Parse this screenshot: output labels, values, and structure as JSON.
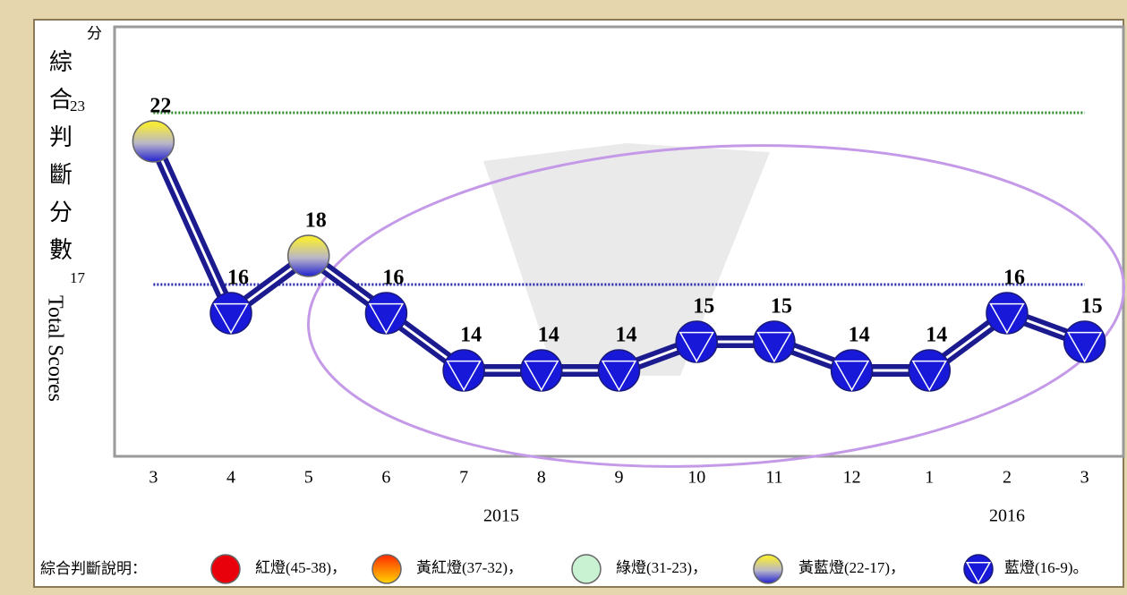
{
  "chart_data": {
    "type": "line",
    "y_unit": "分",
    "y_label_zh": "綜合判斷分數",
    "y_label_en": "Total Scores",
    "categories": [
      "3",
      "4",
      "5",
      "6",
      "7",
      "8",
      "9",
      "10",
      "11",
      "12",
      "1",
      "2",
      "3"
    ],
    "year_labels": [
      "2015",
      "2016"
    ],
    "values": [
      22,
      16,
      18,
      16,
      14,
      14,
      14,
      15,
      15,
      14,
      14,
      16,
      15
    ],
    "line_color": "#1b1b8f",
    "ylim": [
      11,
      26
    ],
    "yticks": [
      17,
      23
    ],
    "grid_colors": [
      "#2a2ab0",
      "#2e8b2e"
    ],
    "legend_title": "綜合判斷說明：",
    "legend": [
      {
        "label": "紅燈(45-38)，",
        "range": [
          38,
          45
        ],
        "color": "#e8000b"
      },
      {
        "label": "黃紅燈(37-32)，",
        "range": [
          32,
          37
        ],
        "color": "#ff8a00"
      },
      {
        "label": "綠燈(31-23)，",
        "range": [
          23,
          31
        ],
        "color": "#c9f2d2"
      },
      {
        "label": "黃藍燈(22-17)，",
        "range": [
          17,
          22
        ],
        "color": "#f2e640"
      },
      {
        "label": "藍燈(16-9)。",
        "range": [
          9,
          16
        ],
        "color": "#1818d8"
      }
    ]
  }
}
